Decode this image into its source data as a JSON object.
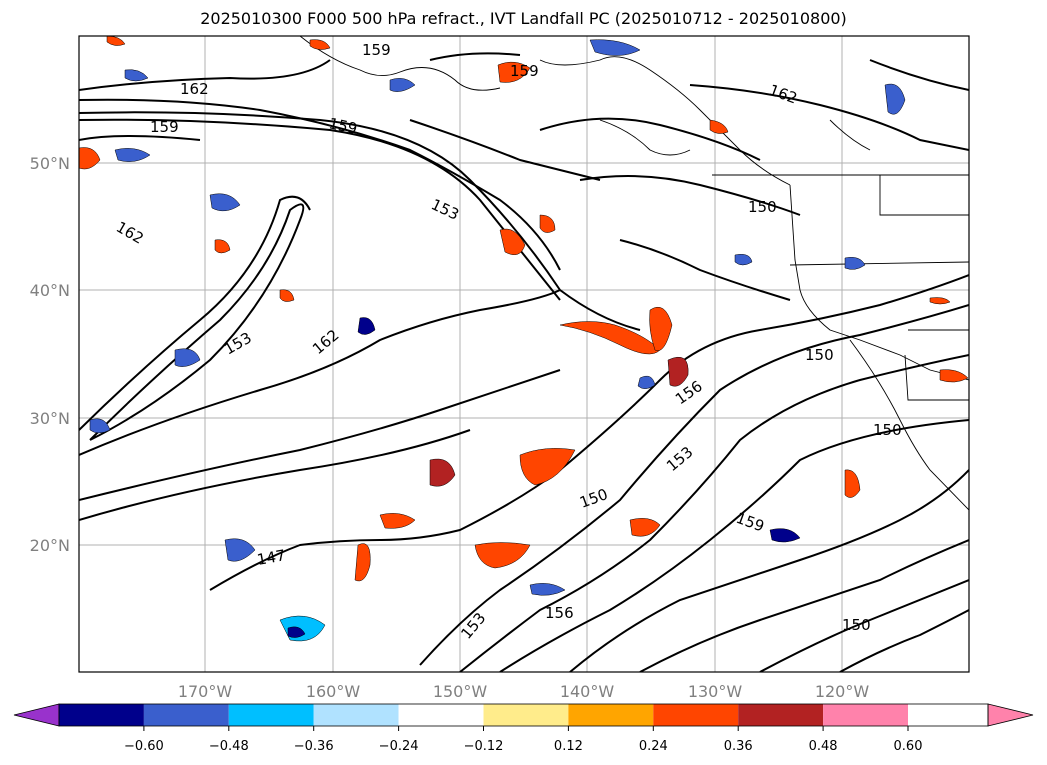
{
  "title": "2025010300 F000 500 hPa refract., IVT Landfall PC (2025010712 - 2025010800)",
  "map": {
    "lon_ticks": [
      "170°W",
      "160°W",
      "150°W",
      "140°W",
      "130°W",
      "120°W"
    ],
    "lat_ticks": [
      "50°N",
      "40°N",
      "30°N",
      "20°N"
    ],
    "contour_labels": [
      "162",
      "159",
      "159",
      "162",
      "159",
      "159",
      "162",
      "153",
      "150",
      "153",
      "162",
      "156",
      "147",
      "153",
      "150",
      "156",
      "150",
      "159",
      "150",
      "150",
      "153"
    ],
    "grid": true
  },
  "colorbar": {
    "colors": [
      "#9932cc",
      "#00008b",
      "#3a5fcd",
      "#00bfff",
      "#b0e2ff",
      "#ffffff",
      "#ffec8b",
      "#ffa500",
      "#ff4500",
      "#b22222",
      "#ff82ab"
    ],
    "ticks": [
      "−0.60",
      "−0.48",
      "−0.36",
      "−0.24",
      "−0.12",
      "0.12",
      "0.24",
      "0.36",
      "0.48",
      "0.60"
    ]
  }
}
